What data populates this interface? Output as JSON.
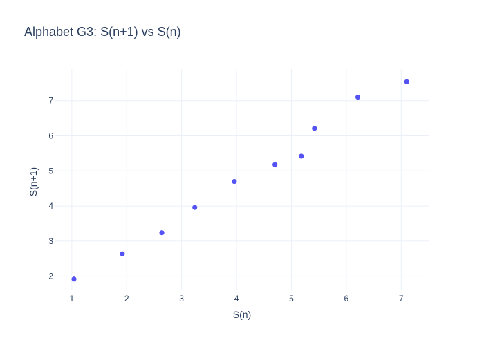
{
  "chart_data": {
    "type": "scatter",
    "title": "Alphabet G3: S(n+1) vs S(n)",
    "xlabel": "S(n)",
    "ylabel": "S(n+1)",
    "xlim": [
      0.7,
      7.5
    ],
    "ylim": [
      1.6,
      7.9
    ],
    "x_ticks": [
      "1",
      "2",
      "3",
      "4",
      "5",
      "6",
      "7"
    ],
    "y_ticks": [
      "2",
      "3",
      "4",
      "5",
      "6",
      "7"
    ],
    "grid": true,
    "legend": "none",
    "marker_color": "#5552f3",
    "series": [
      {
        "points": [
          {
            "x": 1.04,
            "y": 1.92
          },
          {
            "x": 1.92,
            "y": 2.64
          },
          {
            "x": 2.64,
            "y": 3.24
          },
          {
            "x": 3.24,
            "y": 3.96
          },
          {
            "x": 3.96,
            "y": 4.7
          },
          {
            "x": 4.7,
            "y": 5.18
          },
          {
            "x": 5.18,
            "y": 5.42
          },
          {
            "x": 5.42,
            "y": 6.21
          },
          {
            "x": 6.21,
            "y": 7.1
          },
          {
            "x": 7.1,
            "y": 7.54
          }
        ]
      }
    ]
  }
}
